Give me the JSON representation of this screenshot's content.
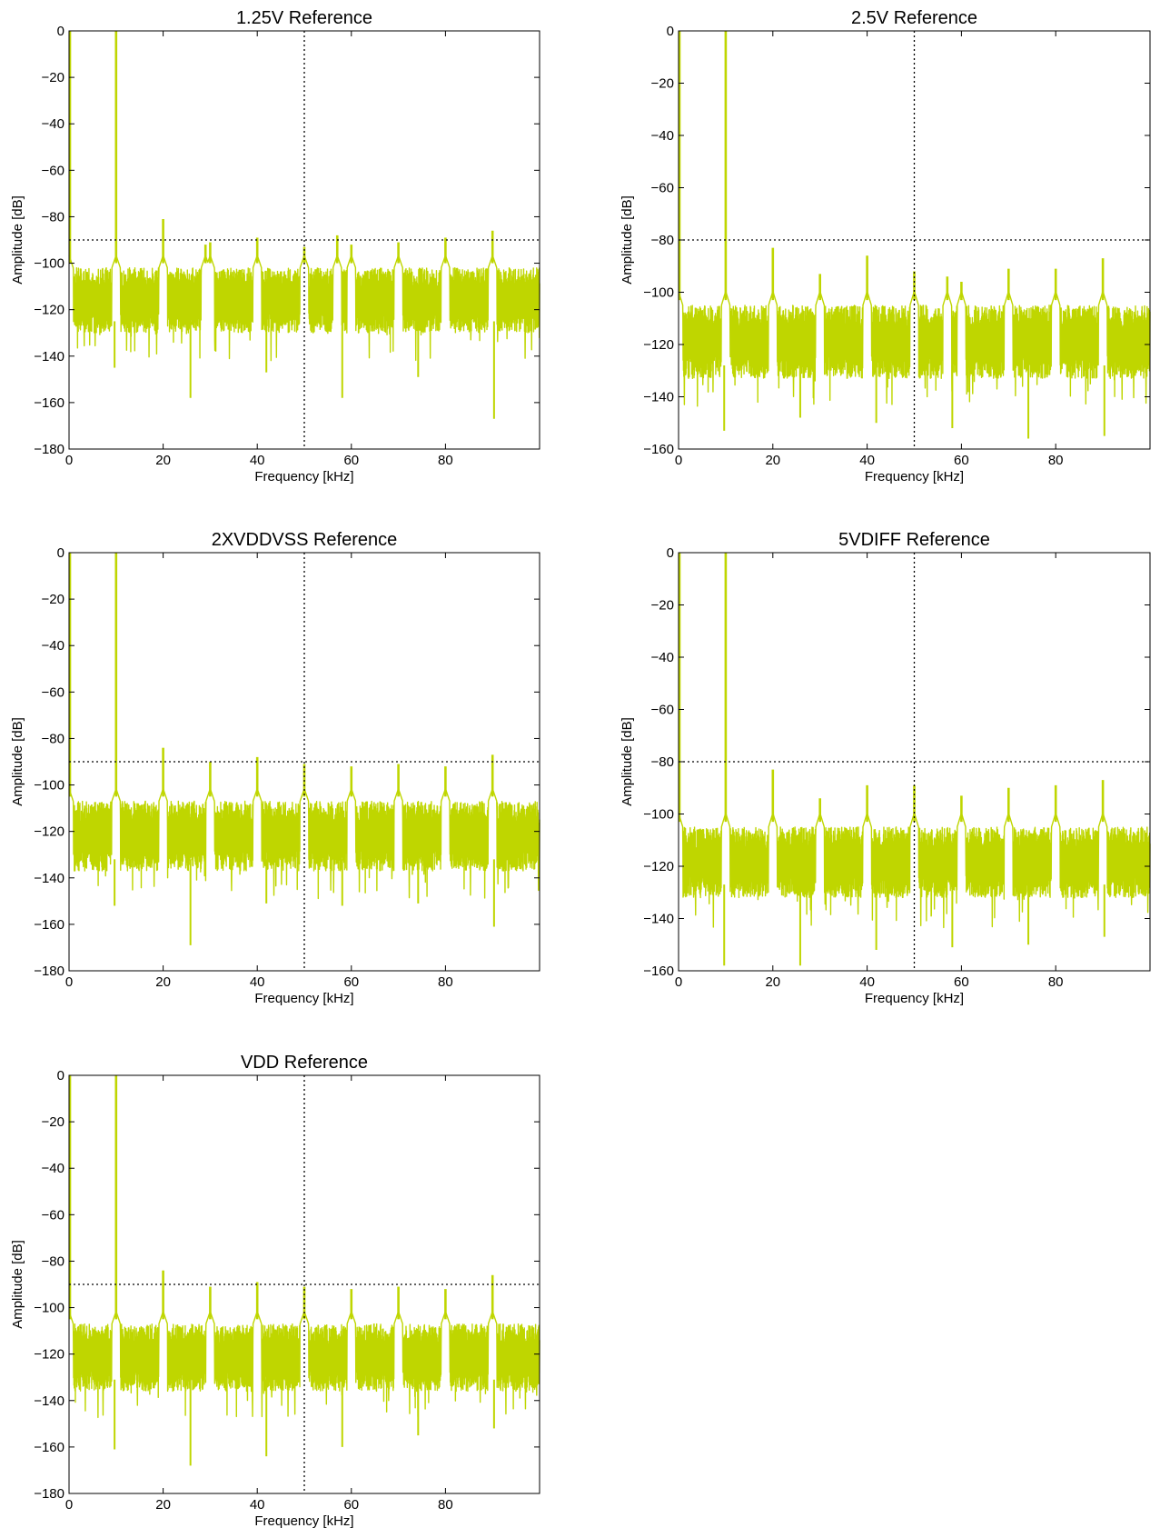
{
  "chart_data": [
    {
      "type": "line",
      "title": "1.25V Reference",
      "xlabel": "Frequency [kHz]",
      "ylabel": "Amplitude [dB]",
      "xlim": [
        0,
        100
      ],
      "ylim": [
        -180,
        0
      ],
      "xticks": [
        "0",
        "20",
        "40",
        "60",
        "80"
      ],
      "yticks": [
        "0",
        "−20",
        "−40",
        "−60",
        "−80",
        "−100",
        "−120",
        "−140",
        "−160",
        "−180"
      ],
      "color": "#bfd600",
      "grid": false,
      "threshold_db": -90,
      "marker_khz": 50,
      "noise_floor": {
        "top_db": -102,
        "bottom_db": -130,
        "deep_spikes_db": [
          -145,
          -158,
          -147,
          -158,
          -149,
          -167
        ]
      },
      "peaks": [
        {
          "x": 0,
          "y": 0
        },
        {
          "x": 10,
          "y": 0
        },
        {
          "x": 20,
          "y": -81
        },
        {
          "x": 29,
          "y": -92
        },
        {
          "x": 30,
          "y": -91
        },
        {
          "x": 40,
          "y": -89
        },
        {
          "x": 50,
          "y": -93
        },
        {
          "x": 57,
          "y": -88
        },
        {
          "x": 60,
          "y": -92
        },
        {
          "x": 70,
          "y": -91
        },
        {
          "x": 80,
          "y": -89
        },
        {
          "x": 90,
          "y": -86
        }
      ]
    },
    {
      "type": "line",
      "title": "2.5V Reference",
      "xlabel": "Frequency [kHz]",
      "ylabel": "Amplitude [dB]",
      "xlim": [
        0,
        100
      ],
      "ylim": [
        -160,
        0
      ],
      "xticks": [
        "0",
        "20",
        "40",
        "60",
        "80"
      ],
      "yticks": [
        "0",
        "−20",
        "−40",
        "−60",
        "−80",
        "−100",
        "−120",
        "−140",
        "−160"
      ],
      "color": "#bfd600",
      "grid": false,
      "threshold_db": -80,
      "marker_khz": 50,
      "noise_floor": {
        "top_db": -105,
        "bottom_db": -133,
        "deep_spikes_db": [
          -153,
          -148,
          -150,
          -152,
          -156,
          -155
        ]
      },
      "peaks": [
        {
          "x": 0,
          "y": 0
        },
        {
          "x": 10,
          "y": 0
        },
        {
          "x": 20,
          "y": -83
        },
        {
          "x": 30,
          "y": -93
        },
        {
          "x": 40,
          "y": -86
        },
        {
          "x": 50,
          "y": -92
        },
        {
          "x": 57,
          "y": -94
        },
        {
          "x": 60,
          "y": -96
        },
        {
          "x": 70,
          "y": -91
        },
        {
          "x": 80,
          "y": -91
        },
        {
          "x": 90,
          "y": -87
        }
      ]
    },
    {
      "type": "line",
      "title": "2XVDDVSS Reference",
      "xlabel": "Frequency [kHz]",
      "ylabel": "Amplitude [dB]",
      "xlim": [
        0,
        100
      ],
      "ylim": [
        -180,
        0
      ],
      "xticks": [
        "0",
        "20",
        "40",
        "60",
        "80"
      ],
      "yticks": [
        "0",
        "−20",
        "−40",
        "−60",
        "−80",
        "−100",
        "−120",
        "−140",
        "−160",
        "−180"
      ],
      "color": "#bfd600",
      "grid": false,
      "threshold_db": -90,
      "marker_khz": 50,
      "noise_floor": {
        "top_db": -107,
        "bottom_db": -137,
        "deep_spikes_db": [
          -152,
          -169,
          -151,
          -152,
          -151,
          -161
        ]
      },
      "peaks": [
        {
          "x": 0,
          "y": 0
        },
        {
          "x": 10,
          "y": 0
        },
        {
          "x": 20,
          "y": -84
        },
        {
          "x": 30,
          "y": -90
        },
        {
          "x": 40,
          "y": -88
        },
        {
          "x": 50,
          "y": -91
        },
        {
          "x": 60,
          "y": -92
        },
        {
          "x": 70,
          "y": -91
        },
        {
          "x": 80,
          "y": -92
        },
        {
          "x": 90,
          "y": -87
        }
      ]
    },
    {
      "type": "line",
      "title": "5VDIFF Reference",
      "xlabel": "Frequency [kHz]",
      "ylabel": "Amplitude [dB]",
      "xlim": [
        0,
        100
      ],
      "ylim": [
        -160,
        0
      ],
      "xticks": [
        "0",
        "20",
        "40",
        "60",
        "80"
      ],
      "yticks": [
        "0",
        "−20",
        "−40",
        "−60",
        "−80",
        "−100",
        "−120",
        "−140",
        "−160"
      ],
      "color": "#bfd600",
      "grid": false,
      "threshold_db": -80,
      "marker_khz": 50,
      "noise_floor": {
        "top_db": -105,
        "bottom_db": -132,
        "deep_spikes_db": [
          -158,
          -158,
          -152,
          -151,
          -150,
          -147
        ]
      },
      "peaks": [
        {
          "x": 0,
          "y": 0
        },
        {
          "x": 10,
          "y": 0
        },
        {
          "x": 20,
          "y": -83
        },
        {
          "x": 30,
          "y": -94
        },
        {
          "x": 40,
          "y": -89
        },
        {
          "x": 50,
          "y": -89
        },
        {
          "x": 60,
          "y": -93
        },
        {
          "x": 70,
          "y": -90
        },
        {
          "x": 80,
          "y": -89
        },
        {
          "x": 90,
          "y": -87
        }
      ]
    },
    {
      "type": "line",
      "title": "VDD Reference",
      "xlabel": "Frequency [kHz]",
      "ylabel": "Amplitude [dB]",
      "xlim": [
        0,
        100
      ],
      "ylim": [
        -180,
        0
      ],
      "xticks": [
        "0",
        "20",
        "40",
        "60",
        "80"
      ],
      "yticks": [
        "0",
        "−20",
        "−40",
        "−60",
        "−80",
        "−100",
        "−120",
        "−140",
        "−160",
        "−180"
      ],
      "color": "#bfd600",
      "grid": false,
      "threshold_db": -90,
      "marker_khz": 50,
      "noise_floor": {
        "top_db": -107,
        "bottom_db": -136,
        "deep_spikes_db": [
          -161,
          -168,
          -164,
          -160,
          -155,
          -152
        ]
      },
      "peaks": [
        {
          "x": 0,
          "y": 0
        },
        {
          "x": 10,
          "y": 0
        },
        {
          "x": 20,
          "y": -84
        },
        {
          "x": 30,
          "y": -91
        },
        {
          "x": 40,
          "y": -89
        },
        {
          "x": 50,
          "y": -91
        },
        {
          "x": 60,
          "y": -92
        },
        {
          "x": 70,
          "y": -91
        },
        {
          "x": 80,
          "y": -92
        },
        {
          "x": 90,
          "y": -86
        }
      ]
    }
  ]
}
